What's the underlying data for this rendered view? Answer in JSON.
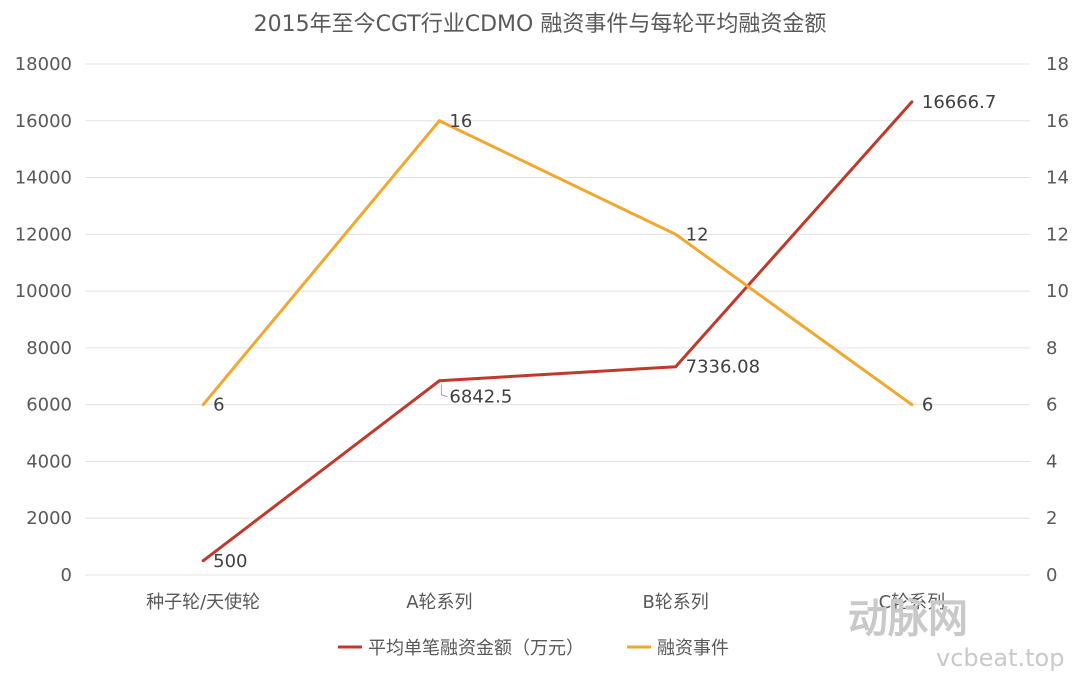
{
  "chart_data": {
    "type": "line",
    "title": "2015年至今CGT行业CDMO 融资事件与每轮平均融资金额",
    "categories": [
      "种子轮/天使轮",
      "A轮系列",
      "B轮系列",
      "C轮系列"
    ],
    "y_left": {
      "min": 0,
      "max": 18000,
      "step": 2000,
      "ticks": [
        "0",
        "2000",
        "4000",
        "6000",
        "8000",
        "10000",
        "12000",
        "14000",
        "16000",
        "18000"
      ]
    },
    "y_right": {
      "min": 0,
      "max": 18,
      "step": 2,
      "ticks": [
        "0",
        "2",
        "4",
        "6",
        "8",
        "10",
        "12",
        "14",
        "16",
        "18"
      ]
    },
    "series": [
      {
        "name": "平均单笔融资金额（万元）",
        "axis": "left",
        "color": "#c0392b",
        "values": [
          500,
          6842.5,
          7336.08,
          16666.7
        ],
        "labels": [
          "500",
          "6842.5",
          "7336.08",
          "16666.7"
        ]
      },
      {
        "name": "融资事件",
        "axis": "right",
        "color": "#f0a830",
        "values": [
          6,
          16,
          12,
          6
        ],
        "labels": [
          "6",
          "16",
          "12",
          "6"
        ]
      }
    ],
    "grid": true,
    "legend": "bottom"
  },
  "watermark": {
    "brand": "动脉网",
    "site": "vcbeat.top"
  }
}
